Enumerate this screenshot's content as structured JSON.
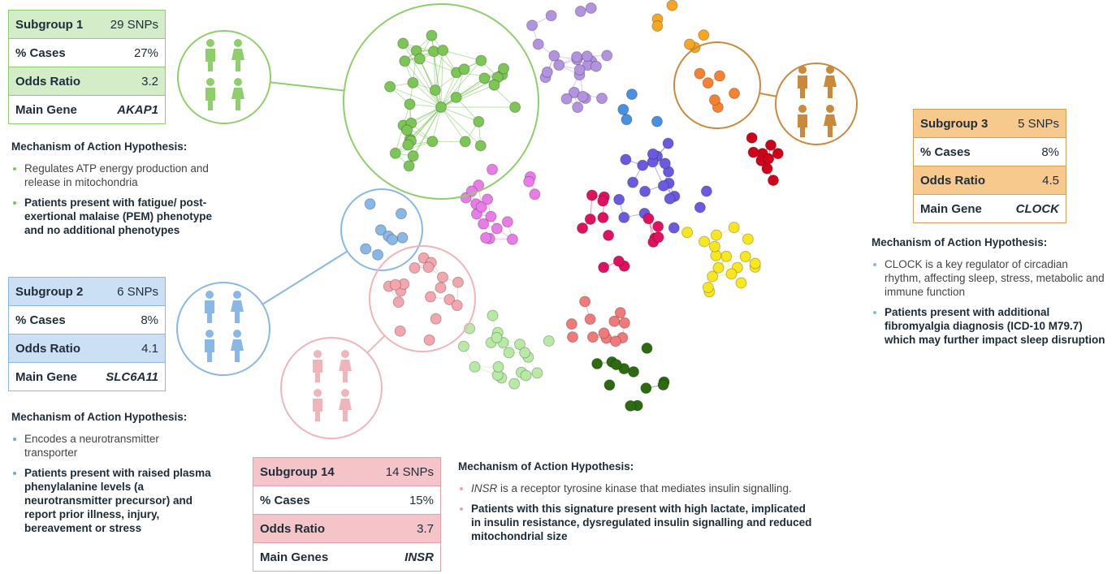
{
  "subgroups": [
    {
      "name": "Subgroup 1",
      "snps": "29 SNPs",
      "rows": [
        {
          "label": "% Cases",
          "value": "27%"
        },
        {
          "label": "Odds Ratio",
          "value": "3.2"
        },
        {
          "label": "Main Gene",
          "value": "AKAP1"
        }
      ],
      "hypothesis": {
        "title": "Mechanism of Action Hypothesis:",
        "points": [
          "Regulates ATP energy production and release in mitochondria",
          "Patients present with fatigue/ post- exertional malaise (PEM) phenotype and no additional phenotypes"
        ]
      }
    },
    {
      "name": "Subgroup 2",
      "snps": "6 SNPs",
      "rows": [
        {
          "label": "% Cases",
          "value": "8%"
        },
        {
          "label": "Odds Ratio",
          "value": "4.1"
        },
        {
          "label": "Main Gene",
          "value": "SLC6A11"
        }
      ],
      "hypothesis": {
        "title": "Mechanism of Action Hypothesis:",
        "points": [
          "Encodes a neurotransmitter transporter",
          "Patients present with raised plasma phenylalanine levels (a neurotransmitter precursor) and report prior illness, injury, bereavement or stress"
        ]
      }
    },
    {
      "name": "Subgroup 3",
      "snps": "5 SNPs",
      "rows": [
        {
          "label": "% Cases",
          "value": "8%"
        },
        {
          "label": "Odds Ratio",
          "value": "4.5"
        },
        {
          "label": "Main Gene",
          "value": "CLOCK"
        }
      ],
      "hypothesis": {
        "title": "Mechanism of Action Hypothesis:",
        "points": [
          "CLOCK is a key regulator of circadian rhythm, affecting sleep, stress, metabolic and immune function",
          "Patients present with additional fibromyalgia diagnosis (ICD-10 M79.7) which may further impact sleep disruption"
        ]
      }
    },
    {
      "name": "Subgroup 14",
      "snps": "14 SNPs",
      "rows": [
        {
          "label": "% Cases",
          "value": "15%"
        },
        {
          "label": "Odds Ratio",
          "value": "3.7"
        },
        {
          "label": "Main Genes",
          "value": "INSR"
        }
      ],
      "hypothesis": {
        "title": "Mechanism of Action Hypothesis:",
        "points": [
          {
            "em": "INSR",
            "text": " is a receptor tyrosine kinase that mediates insulin signalling."
          },
          "Patients with this signature present with high lactate, implicated in insulin resistance, dysregulated insulin signalling and reduced mitochondrial size"
        ]
      }
    }
  ]
}
